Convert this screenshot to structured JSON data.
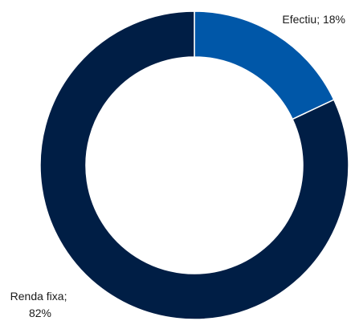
{
  "chart_data": {
    "type": "pie",
    "variant": "donut",
    "title": "",
    "slices": [
      {
        "label": "Efectiu",
        "value": 18,
        "display": "Efectiu; 18%",
        "color": "#0057A8"
      },
      {
        "label": "Renda fixa",
        "value": 82,
        "display_lines": [
          "Renda fixa;",
          "82%"
        ],
        "color": "#001E45"
      }
    ],
    "legend": "none"
  }
}
